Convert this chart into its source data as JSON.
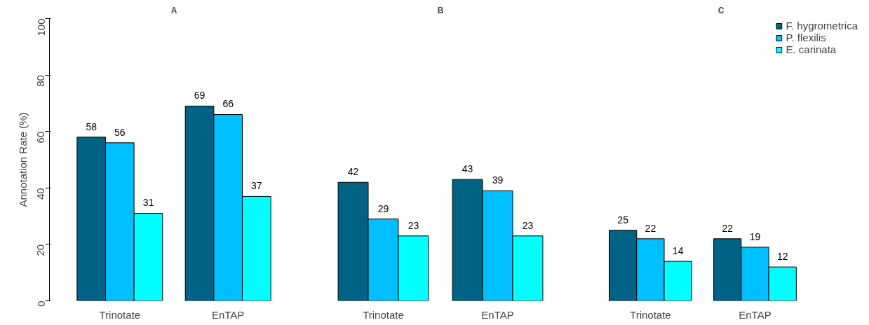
{
  "chart_data": [
    {
      "type": "bar",
      "title": "A",
      "ylabel": "Annotation Rate (%)",
      "categories": [
        "Trinotate",
        "EnTAP"
      ],
      "ylim": [
        0,
        100
      ],
      "yticks": [
        0,
        20,
        40,
        60,
        80,
        100
      ],
      "data_labels": true,
      "series": [
        {
          "color": "#006385",
          "values": [
            58,
            69
          ]
        },
        {
          "color": "#00bfff",
          "values": [
            56,
            66
          ]
        },
        {
          "color": "#00ffff",
          "values": [
            31,
            37
          ]
        }
      ]
    },
    {
      "type": "bar",
      "title": "B",
      "categories": [
        "Trinotate",
        "EnTAP"
      ],
      "ylim": [
        0,
        100
      ],
      "tick_labels": "x",
      "data_labels": true,
      "series": [
        {
          "color": "#006385",
          "values": [
            42,
            43
          ]
        },
        {
          "color": "#00bfff",
          "values": [
            29,
            39
          ]
        },
        {
          "color": "#00ffff",
          "values": [
            23,
            23
          ]
        }
      ]
    },
    {
      "type": "bar",
      "title": "C",
      "categories": [
        "Trinotate",
        "EnTAP"
      ],
      "ylim": [
        0,
        100
      ],
      "tick_labels": "x",
      "data_labels": true,
      "legend": "top right",
      "series": [
        {
          "name": "F. hygrometrica",
          "color": "#006385",
          "values": [
            25,
            22
          ]
        },
        {
          "name": "P. flexilis",
          "color": "#00bfff",
          "values": [
            22,
            19
          ]
        },
        {
          "name": "E. carinata",
          "color": "#00ffff",
          "values": [
            14,
            12
          ]
        }
      ]
    }
  ]
}
